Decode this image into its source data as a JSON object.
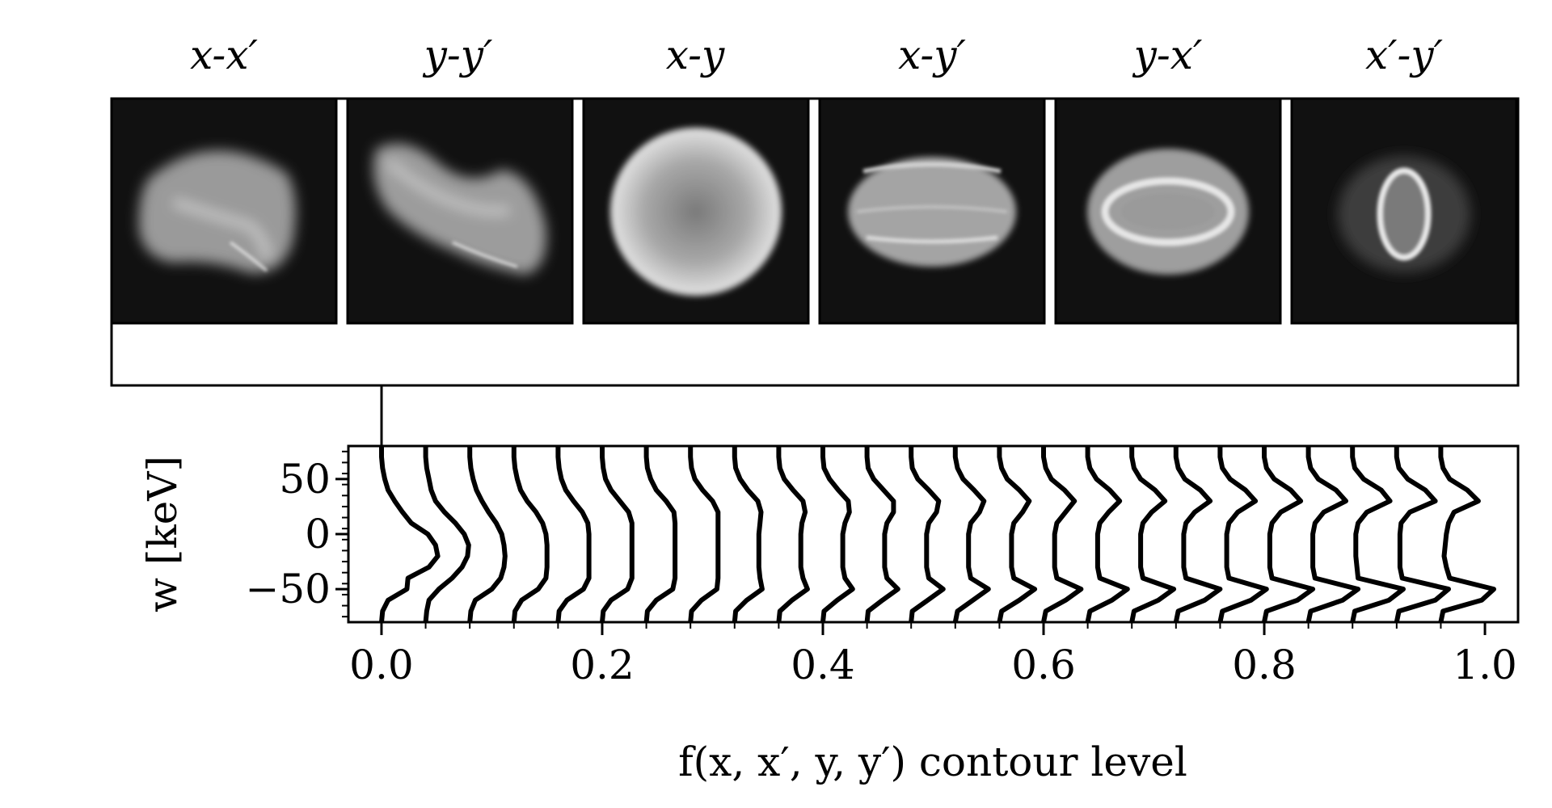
{
  "chart_data": [
    {
      "type": "heatmap",
      "colormap": "gray",
      "panels": [
        {
          "title": "x-x′",
          "shape": "bowtie"
        },
        {
          "title": "y-y′",
          "shape": "s-curve"
        },
        {
          "title": "x-y",
          "shape": "disk"
        },
        {
          "title": "x-y′",
          "shape": "banded-ellipse"
        },
        {
          "title": "y-x′",
          "shape": "ring-ellipse"
        },
        {
          "title": "x′-y′",
          "shape": "hollow-ring"
        }
      ]
    },
    {
      "type": "line",
      "xlabel": "f(x, x′, y, y′) contour level",
      "ylabel": "w [keV]",
      "xlim": [
        -0.03,
        1.03
      ],
      "ylim": [
        -80,
        80
      ],
      "xticks": [
        0.0,
        0.2,
        0.4,
        0.6,
        0.8,
        1.0
      ],
      "xtick_labels": [
        "0.0",
        "0.2",
        "0.4",
        "0.6",
        "0.8",
        "1.0"
      ],
      "yticks": [
        50,
        0,
        -50
      ],
      "ytick_labels": [
        "50",
        "0",
        "−50"
      ],
      "grid": false,
      "legend": "none",
      "w": [
        -80,
        -70,
        -60,
        -50,
        -40,
        -30,
        -20,
        -10,
        0,
        10,
        20,
        30,
        40,
        50,
        60,
        70,
        80
      ],
      "series": [
        {
          "offset": 0.0,
          "values": [
            0.0,
            0.001,
            0.006,
            0.023,
            0.024,
            0.043,
            0.051,
            0.049,
            0.042,
            0.027,
            0.019,
            0.012,
            0.006,
            0.003,
            0.001,
            0.0,
            0.0
          ]
        },
        {
          "offset": 0.04,
          "values": [
            0.0,
            0.001,
            0.003,
            0.012,
            0.024,
            0.033,
            0.038,
            0.039,
            0.035,
            0.027,
            0.017,
            0.009,
            0.005,
            0.003,
            0.001,
            0.0,
            0.0
          ]
        },
        {
          "offset": 0.08,
          "values": [
            0.0,
            0.001,
            0.005,
            0.02,
            0.028,
            0.031,
            0.032,
            0.031,
            0.029,
            0.024,
            0.017,
            0.011,
            0.006,
            0.003,
            0.001,
            0.0,
            0.0
          ]
        },
        {
          "offset": 0.12,
          "values": [
            0.0,
            0.001,
            0.007,
            0.022,
            0.029,
            0.03,
            0.03,
            0.03,
            0.029,
            0.026,
            0.02,
            0.012,
            0.006,
            0.003,
            0.001,
            0.0,
            0.0
          ]
        },
        {
          "offset": 0.16,
          "values": [
            0.0,
            0.001,
            0.008,
            0.023,
            0.028,
            0.028,
            0.028,
            0.028,
            0.028,
            0.027,
            0.022,
            0.014,
            0.007,
            0.003,
            0.001,
            0.0,
            0.0
          ]
        },
        {
          "offset": 0.2,
          "values": [
            0.0,
            0.001,
            0.008,
            0.023,
            0.027,
            0.027,
            0.027,
            0.027,
            0.027,
            0.027,
            0.024,
            0.016,
            0.008,
            0.003,
            0.001,
            0.0,
            0.0
          ]
        },
        {
          "offset": 0.24,
          "values": [
            0.0,
            0.001,
            0.009,
            0.024,
            0.026,
            0.026,
            0.026,
            0.026,
            0.026,
            0.026,
            0.025,
            0.018,
            0.009,
            0.004,
            0.001,
            0.0,
            0.0
          ]
        },
        {
          "offset": 0.28,
          "values": [
            0.0,
            0.001,
            0.01,
            0.024,
            0.025,
            0.025,
            0.025,
            0.025,
            0.025,
            0.025,
            0.025,
            0.02,
            0.011,
            0.004,
            0.001,
            0.0,
            0.0
          ]
        },
        {
          "offset": 0.32,
          "values": [
            0.0,
            0.001,
            0.011,
            0.025,
            0.023,
            0.022,
            0.022,
            0.022,
            0.022,
            0.023,
            0.024,
            0.021,
            0.012,
            0.005,
            0.001,
            0.0,
            0.0
          ]
        },
        {
          "offset": 0.36,
          "values": [
            0.0,
            0.001,
            0.012,
            0.026,
            0.022,
            0.02,
            0.02,
            0.02,
            0.02,
            0.021,
            0.024,
            0.022,
            0.013,
            0.005,
            0.001,
            0.0,
            0.0
          ]
        },
        {
          "offset": 0.4,
          "values": [
            0.0,
            0.001,
            0.013,
            0.027,
            0.02,
            0.018,
            0.018,
            0.018,
            0.018,
            0.02,
            0.024,
            0.023,
            0.014,
            0.006,
            0.001,
            0.0,
            0.0
          ]
        },
        {
          "offset": 0.44,
          "values": [
            0.0,
            0.001,
            0.014,
            0.028,
            0.018,
            0.016,
            0.016,
            0.016,
            0.016,
            0.018,
            0.024,
            0.024,
            0.015,
            0.006,
            0.001,
            0.0,
            0.0
          ]
        },
        {
          "offset": 0.48,
          "values": [
            0.0,
            0.001,
            0.015,
            0.029,
            0.016,
            0.014,
            0.014,
            0.014,
            0.014,
            0.016,
            0.023,
            0.025,
            0.016,
            0.006,
            0.001,
            0.0,
            0.0
          ]
        },
        {
          "offset": 0.52,
          "values": [
            0.0,
            0.002,
            0.016,
            0.03,
            0.014,
            0.012,
            0.012,
            0.012,
            0.012,
            0.014,
            0.022,
            0.026,
            0.017,
            0.007,
            0.002,
            0.0,
            0.0
          ]
        },
        {
          "offset": 0.56,
          "values": [
            0.0,
            0.002,
            0.018,
            0.032,
            0.013,
            0.011,
            0.011,
            0.011,
            0.011,
            0.013,
            0.021,
            0.027,
            0.018,
            0.007,
            0.002,
            0.0,
            0.0
          ]
        },
        {
          "offset": 0.6,
          "values": [
            0.0,
            0.002,
            0.02,
            0.034,
            0.012,
            0.01,
            0.01,
            0.01,
            0.01,
            0.012,
            0.02,
            0.028,
            0.019,
            0.007,
            0.002,
            0.0,
            0.0
          ]
        },
        {
          "offset": 0.64,
          "values": [
            0.0,
            0.002,
            0.022,
            0.036,
            0.011,
            0.009,
            0.009,
            0.009,
            0.009,
            0.011,
            0.019,
            0.029,
            0.02,
            0.008,
            0.002,
            0.0,
            0.0
          ]
        },
        {
          "offset": 0.68,
          "values": [
            0.0,
            0.002,
            0.024,
            0.038,
            0.01,
            0.008,
            0.008,
            0.008,
            0.008,
            0.01,
            0.018,
            0.03,
            0.021,
            0.008,
            0.002,
            0.0,
            0.0
          ]
        },
        {
          "offset": 0.72,
          "values": [
            0.0,
            0.002,
            0.026,
            0.04,
            0.009,
            0.007,
            0.007,
            0.007,
            0.007,
            0.009,
            0.017,
            0.031,
            0.022,
            0.008,
            0.002,
            0.0,
            0.0
          ]
        },
        {
          "offset": 0.76,
          "values": [
            0.0,
            0.002,
            0.028,
            0.042,
            0.008,
            0.006,
            0.006,
            0.006,
            0.006,
            0.008,
            0.016,
            0.032,
            0.023,
            0.009,
            0.002,
            0.0,
            0.0
          ]
        },
        {
          "offset": 0.8,
          "values": [
            0.0,
            0.002,
            0.03,
            0.044,
            0.007,
            0.005,
            0.005,
            0.005,
            0.005,
            0.007,
            0.015,
            0.033,
            0.024,
            0.009,
            0.002,
            0.0,
            0.0
          ]
        },
        {
          "offset": 0.84,
          "values": [
            0.0,
            0.002,
            0.031,
            0.045,
            0.006,
            0.004,
            0.004,
            0.004,
            0.004,
            0.006,
            0.014,
            0.034,
            0.025,
            0.009,
            0.002,
            0.0,
            0.0
          ]
        },
        {
          "offset": 0.88,
          "values": [
            0.0,
            0.002,
            0.033,
            0.046,
            0.005,
            0.004,
            0.003,
            0.003,
            0.003,
            0.005,
            0.013,
            0.034,
            0.026,
            0.01,
            0.002,
            0.0,
            0.0
          ]
        },
        {
          "offset": 0.92,
          "values": [
            0.0,
            0.002,
            0.035,
            0.047,
            0.005,
            0.003,
            0.003,
            0.003,
            0.003,
            0.004,
            0.012,
            0.035,
            0.026,
            0.01,
            0.002,
            0.0,
            0.0
          ]
        },
        {
          "offset": 0.96,
          "values": [
            0.0,
            0.002,
            0.037,
            0.048,
            0.008,
            0.005,
            0.003,
            0.004,
            0.005,
            0.007,
            0.012,
            0.034,
            0.024,
            0.008,
            0.002,
            0.0,
            0.0
          ]
        }
      ]
    }
  ]
}
